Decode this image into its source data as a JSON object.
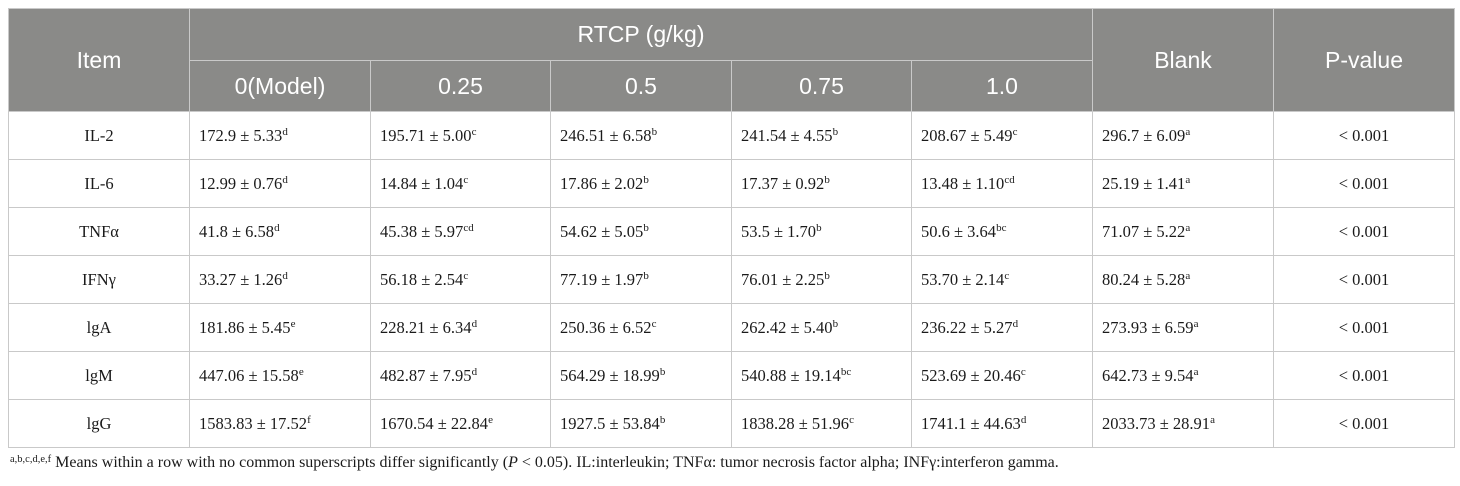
{
  "header": {
    "item": "Item",
    "rtcp": "RTCP (g/kg)",
    "blank": "Blank",
    "pvalue": "P-value",
    "doses": [
      "0(Model)",
      "0.25",
      "0.5",
      "0.75",
      "1.0"
    ]
  },
  "rows": [
    {
      "item": "IL-2",
      "cells": [
        {
          "v": "172.9 ± 5.33",
          "s": "d"
        },
        {
          "v": "195.71 ± 5.00",
          "s": "c"
        },
        {
          "v": "246.51 ± 6.58",
          "s": "b"
        },
        {
          "v": "241.54 ± 4.55",
          "s": "b"
        },
        {
          "v": "208.67 ± 5.49",
          "s": "c"
        },
        {
          "v": "296.7 ± 6.09",
          "s": "a"
        }
      ],
      "p": "< 0.001"
    },
    {
      "item": "IL-6",
      "cells": [
        {
          "v": "12.99 ± 0.76",
          "s": "d"
        },
        {
          "v": "14.84 ± 1.04",
          "s": "c"
        },
        {
          "v": "17.86 ± 2.02",
          "s": "b"
        },
        {
          "v": "17.37 ± 0.92",
          "s": "b"
        },
        {
          "v": "13.48 ± 1.10",
          "s": "cd"
        },
        {
          "v": "25.19 ± 1.41",
          "s": "a"
        }
      ],
      "p": "< 0.001"
    },
    {
      "item": "TNFα",
      "cells": [
        {
          "v": "41.8 ± 6.58",
          "s": "d"
        },
        {
          "v": "45.38 ± 5.97",
          "s": "cd"
        },
        {
          "v": "54.62 ± 5.05",
          "s": "b"
        },
        {
          "v": "53.5 ± 1.70",
          "s": "b"
        },
        {
          "v": "50.6 ± 3.64",
          "s": "bc"
        },
        {
          "v": "71.07 ± 5.22",
          "s": "a"
        }
      ],
      "p": "< 0.001"
    },
    {
      "item": "IFNγ",
      "cells": [
        {
          "v": "33.27 ± 1.26",
          "s": "d"
        },
        {
          "v": "56.18 ± 2.54",
          "s": "c"
        },
        {
          "v": "77.19 ± 1.97",
          "s": "b"
        },
        {
          "v": "76.01 ± 2.25",
          "s": "b"
        },
        {
          "v": "53.70 ± 2.14",
          "s": "c"
        },
        {
          "v": "80.24 ± 5.28",
          "s": "a"
        }
      ],
      "p": "< 0.001"
    },
    {
      "item": "lgA",
      "cells": [
        {
          "v": "181.86 ± 5.45",
          "s": "e"
        },
        {
          "v": "228.21 ± 6.34",
          "s": "d"
        },
        {
          "v": "250.36 ± 6.52",
          "s": "c"
        },
        {
          "v": "262.42 ± 5.40",
          "s": "b"
        },
        {
          "v": "236.22 ± 5.27",
          "s": "d"
        },
        {
          "v": "273.93 ± 6.59",
          "s": "a"
        }
      ],
      "p": "< 0.001"
    },
    {
      "item": "lgM",
      "cells": [
        {
          "v": "447.06 ± 15.58",
          "s": "e"
        },
        {
          "v": "482.87 ± 7.95",
          "s": "d"
        },
        {
          "v": "564.29 ± 18.99",
          "s": "b"
        },
        {
          "v": "540.88 ± 19.14",
          "s": "bc"
        },
        {
          "v": "523.69 ± 20.46",
          "s": "c"
        },
        {
          "v": "642.73 ± 9.54",
          "s": "a"
        }
      ],
      "p": "< 0.001"
    },
    {
      "item": "lgG",
      "cells": [
        {
          "v": "1583.83 ± 17.52",
          "s": "f"
        },
        {
          "v": "1670.54 ± 22.84",
          "s": "e"
        },
        {
          "v": "1927.5 ± 53.84",
          "s": "b"
        },
        {
          "v": "1838.28 ± 51.96",
          "s": "c"
        },
        {
          "v": "1741.1 ± 44.63",
          "s": "d"
        },
        {
          "v": "2033.73 ± 28.91",
          "s": "a"
        }
      ],
      "p": "< 0.001"
    }
  ],
  "footnote": {
    "sup": "a,b,c,d,e,f",
    "part1": " Means within a row with no common superscripts differ significantly (",
    "p_italic": "P",
    "part2": " < 0.05). IL:interleukin; TNFα: tumor necrosis factor alpha; INFγ:interferon gamma."
  }
}
